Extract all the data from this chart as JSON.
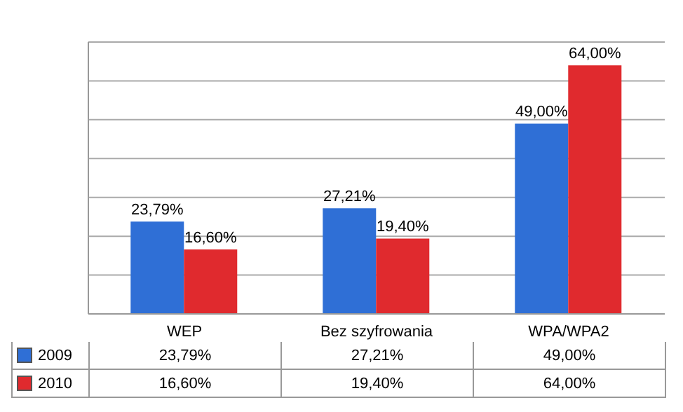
{
  "chart_data": {
    "type": "bar",
    "categories": [
      "WEP",
      "Bez szyfrowania",
      "WPA/WPA2"
    ],
    "series": [
      {
        "name": "2009",
        "color": "#2f6fd6",
        "values": [
          23.79,
          27.21,
          49.0
        ],
        "value_labels": [
          "23,79%",
          "27,21%",
          "49,00%"
        ]
      },
      {
        "name": "2010",
        "color": "#e02a2e",
        "values": [
          16.6,
          19.4,
          64.0
        ],
        "value_labels": [
          "16,60%",
          "19,40%",
          "64,00%"
        ]
      }
    ],
    "grid": "y",
    "legend": "bottom left"
  }
}
